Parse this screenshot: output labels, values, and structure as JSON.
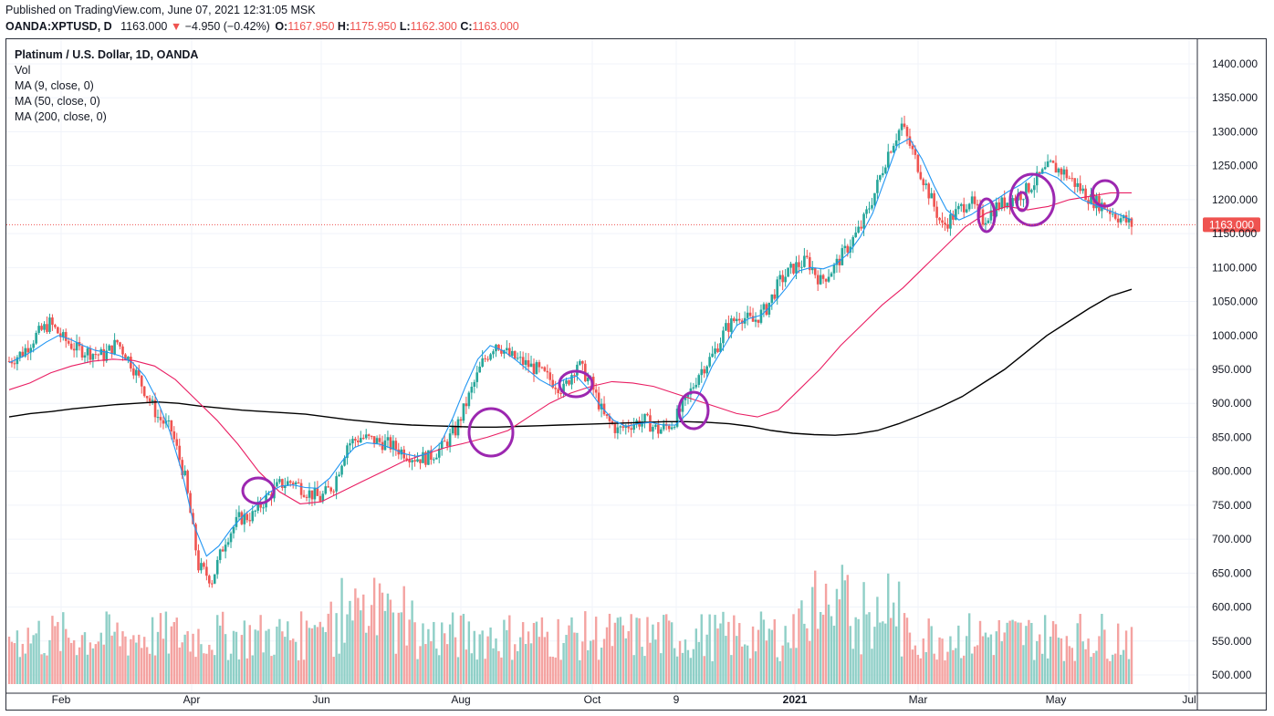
{
  "header": {
    "published": "Published on TradingView.com, June 07, 2021 12:31:05 MSK",
    "symbol": "OANDA:XPTUSD, D",
    "last": "1163.000",
    "change": "−4.950 (−0.42%)",
    "o_label": "O:",
    "o_val": "1167.950",
    "h_label": "H:",
    "h_val": "1175.950",
    "l_label": "L:",
    "l_val": "1162.300",
    "c_label": "C:",
    "c_val": "1163.000"
  },
  "legend": {
    "title": "Platinum / U.S. Dollar, 1D, OANDA",
    "items": [
      "Vol",
      "MA (9, close, 0)",
      "MA (50, close, 0)",
      "MA (200, close, 0)"
    ]
  },
  "colors": {
    "up": "#26a69a",
    "down": "#ef5350",
    "vol_up": "#8fcfc7",
    "vol_down": "#f4a3a1",
    "ma9": "#2196f3",
    "ma50": "#e91e63",
    "ma200": "#000000",
    "annotation": "#9c27b0",
    "price_tag": "#ef5350"
  },
  "chart_data": {
    "type": "candlestick",
    "title": "Platinum / U.S. Dollar, 1D, OANDA",
    "y_range": [
      480,
      1420
    ],
    "y_ticks": [
      "1400.000",
      "1350.000",
      "1300.000",
      "1250.000",
      "1200.000",
      "1150.000",
      "1100.000",
      "1050.000",
      "1000.000",
      "950.000",
      "900.000",
      "850.000",
      "800.000",
      "750.000",
      "700.000",
      "650.000",
      "600.000",
      "550.000",
      "500.000"
    ],
    "x_ticks": [
      "Feb",
      "Apr",
      "Jun",
      "Aug",
      "Oct",
      "9",
      "2021",
      "Mar",
      "May",
      "Jul"
    ],
    "last_price": 1163.0,
    "last_price_label": "1163.000",
    "weekly_closes": [
      962,
      975,
      1000,
      1018,
      995,
      980,
      975,
      970,
      990,
      960,
      920,
      880,
      860,
      790,
      660,
      640,
      700,
      730,
      735,
      760,
      780,
      785,
      770,
      760,
      780,
      840,
      850,
      845,
      840,
      830,
      820,
      820,
      835,
      860,
      910,
      960,
      990,
      970,
      960,
      950,
      935,
      920,
      960,
      930,
      880,
      860,
      870,
      875,
      860,
      870,
      900,
      945,
      970,
      1010,
      1030,
      1020,
      1040,
      1080,
      1100,
      1110,
      1080,
      1100,
      1130,
      1160,
      1210,
      1270,
      1310,
      1260,
      1210,
      1160,
      1180,
      1200,
      1170,
      1190,
      1200,
      1210,
      1230,
      1250,
      1240,
      1220,
      1200,
      1190,
      1175,
      1163
    ],
    "ma200": [
      880,
      885,
      888,
      892,
      895,
      898,
      900,
      902,
      900,
      896,
      893,
      890,
      888,
      886,
      884,
      880,
      876,
      873,
      870,
      868,
      867,
      866,
      865,
      865,
      866,
      867,
      868,
      869,
      870,
      871,
      872,
      873,
      873,
      872,
      870,
      866,
      860,
      856,
      854,
      853,
      855,
      860,
      870,
      882,
      895,
      910,
      930,
      950,
      975,
      1000,
      1020,
      1040,
      1058,
      1068
    ],
    "ma9": [
      960,
      968,
      978,
      990,
      1000,
      994,
      985,
      978,
      975,
      970,
      960,
      940,
      905,
      860,
      800,
      720,
      675,
      690,
      715,
      735,
      750,
      768,
      778,
      780,
      776,
      775,
      790,
      815,
      835,
      842,
      840,
      834,
      826,
      822,
      826,
      842,
      880,
      925,
      965,
      985,
      978,
      965,
      950,
      935,
      925,
      935,
      940,
      920,
      895,
      875,
      866,
      870,
      872,
      868,
      868,
      885,
      915,
      955,
      985,
      1015,
      1025,
      1030,
      1048,
      1070,
      1095,
      1100,
      1098,
      1105,
      1120,
      1145,
      1180,
      1230,
      1280,
      1290,
      1260,
      1220,
      1185,
      1170,
      1178,
      1190,
      1200,
      1212,
      1222,
      1236,
      1240,
      1232,
      1215,
      1200,
      1192,
      1185,
      1178,
      1170
    ],
    "ma50": [
      920,
      930,
      945,
      955,
      962,
      965,
      963,
      955,
      935,
      905,
      875,
      840,
      800,
      770,
      752,
      755,
      770,
      785,
      800,
      815,
      825,
      835,
      842,
      850,
      860,
      880,
      900,
      915,
      925,
      932,
      930,
      925,
      915,
      905,
      895,
      885,
      880,
      890,
      920,
      950,
      985,
      1015,
      1045,
      1070,
      1100,
      1130,
      1160,
      1180,
      1190,
      1185,
      1190,
      1200,
      1205,
      1210,
      1210
    ],
    "annotations_count": 8
  }
}
